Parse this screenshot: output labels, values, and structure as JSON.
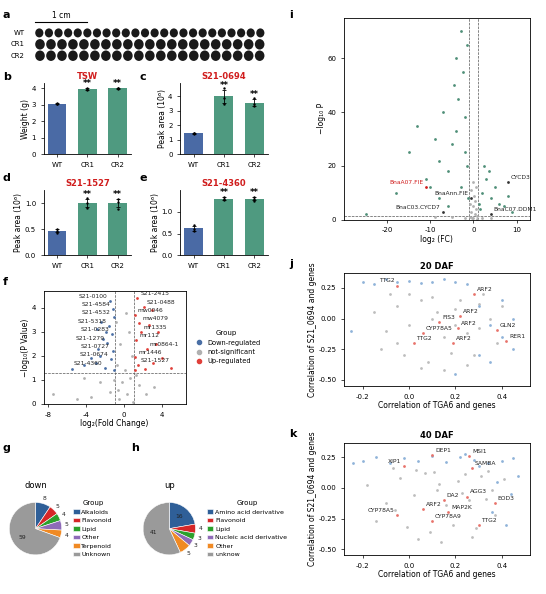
{
  "chart_data": [
    {
      "panel": "a",
      "type": "image",
      "rows": [
        "WT",
        "CR1",
        "CR2"
      ],
      "scale_bar": "1 cm"
    },
    {
      "panel": "b",
      "type": "bar",
      "title": "TSW",
      "ylabel": "Weight (g)",
      "categories": [
        "WT",
        "CR1",
        "CR2"
      ],
      "values": [
        3.05,
        3.95,
        4.0
      ],
      "errors": [
        0.03,
        0.05,
        0.03
      ],
      "points": [
        [
          3.02,
          3.05,
          3.08
        ],
        [
          3.88,
          3.95,
          4.0
        ],
        [
          3.95,
          4.0,
          4.02
        ]
      ],
      "annotations": [
        null,
        "**",
        "**"
      ],
      "colors": [
        "#4a6aa5",
        "#4f9a80",
        "#4f9a80"
      ],
      "ylim": [
        0,
        4.3
      ],
      "yticks": [
        0,
        1,
        2,
        3,
        4
      ],
      "grid": false
    },
    {
      "panel": "c",
      "type": "bar",
      "title": "S21-0694",
      "ylabel": "Peak area (10⁶)",
      "categories": [
        "WT",
        "CR1",
        "CR2"
      ],
      "values": [
        1.45,
        4.0,
        3.55
      ],
      "errors": [
        0.05,
        0.45,
        0.25
      ],
      "points": [
        [
          1.4,
          1.45,
          1.5
        ],
        [
          3.5,
          3.9,
          4.6
        ],
        [
          3.3,
          3.5,
          3.9
        ]
      ],
      "annotations": [
        null,
        "**",
        "**"
      ],
      "colors": [
        "#4a6aa5",
        "#4f9a80",
        "#4f9a80"
      ],
      "ylim": [
        0,
        4.9
      ],
      "yticks": [
        0,
        1,
        2,
        3,
        4
      ],
      "grid": false
    },
    {
      "panel": "d",
      "type": "bar",
      "title": "S21-1527",
      "ylabel": "Peak area (10⁶)",
      "categories": [
        "WT",
        "CR1",
        "CR2"
      ],
      "values": [
        0.47,
        1.0,
        1.0
      ],
      "errors": [
        0.03,
        0.08,
        0.08
      ],
      "points": [
        [
          0.43,
          0.47,
          0.5
        ],
        [
          0.9,
          1.0,
          1.1
        ],
        [
          0.88,
          1.02,
          1.08
        ]
      ],
      "annotations": [
        null,
        "**",
        "**"
      ],
      "colors": [
        "#4a6aa5",
        "#4f9a80",
        "#4f9a80"
      ],
      "ylim": [
        0,
        1.25
      ],
      "yticks": [
        {
          "value": 0,
          "label": "0.0"
        },
        0.5,
        {
          "value": 1,
          "label": "1.0"
        }
      ],
      "grid": false
    },
    {
      "panel": "e",
      "type": "bar",
      "title": "S21-4360",
      "ylabel": "Peak area (10⁶)",
      "categories": [
        "WT",
        "CR1",
        "CR2"
      ],
      "values": [
        0.62,
        1.3,
        1.3
      ],
      "errors": [
        0.06,
        0.03,
        0.03
      ],
      "points": [
        [
          0.55,
          0.6,
          0.7
        ],
        [
          1.27,
          1.3,
          1.33
        ],
        [
          1.26,
          1.3,
          1.34
        ]
      ],
      "annotations": [
        null,
        "**",
        "**"
      ],
      "colors": [
        "#4a6aa5",
        "#4f9a80",
        "#4f9a80"
      ],
      "ylim": [
        0,
        1.5
      ],
      "yticks": [
        {
          "value": 0,
          "label": "0.0"
        },
        0.5,
        {
          "value": 1,
          "label": "1.0"
        }
      ],
      "grid": false
    },
    {
      "panel": "f",
      "type": "scatter",
      "xlabel": "log₂(Fold Change)",
      "ylabel": "−log₁₀(P Value)",
      "legend": "right",
      "legend_title": "Group",
      "series": [
        {
          "name": "Down-regulated",
          "color": "#4a6fa5",
          "x": [
            -1.5,
            -1.2,
            -1.1,
            -1.6,
            -1.3,
            -1.8,
            -1.2,
            -1.4,
            -2.0,
            -2.5,
            -3.0,
            -2.8,
            -3.5,
            -2.4,
            -2.2,
            -1.9,
            -1.05,
            -4.2,
            -2.9,
            -5.5
          ],
          "y": [
            4.3,
            3.95,
            3.6,
            3.25,
            2.9,
            2.55,
            2.2,
            1.85,
            1.5,
            2.0,
            1.7,
            2.3,
            1.9,
            3.4,
            2.7,
            3.0,
            1.4,
            1.6,
            3.1,
            1.45
          ],
          "labels": [
            "S21-0100",
            "S21-4584",
            "S21-4532",
            "S21-5318",
            "S21-0283",
            "S21-1279",
            "S21-0727",
            "S21-0674",
            "S21-4360",
            null,
            null,
            null,
            null,
            null,
            null,
            null,
            null,
            null,
            null,
            null
          ]
        },
        {
          "name": "not-significant",
          "color": "#b0b0b0",
          "x": [
            -0.5,
            0.3,
            -0.2,
            0.6,
            -0.8,
            0.8,
            -0.4,
            0.5,
            -0.6,
            0.1,
            -1.5,
            1.6,
            -2.5,
            2.3,
            -3.5,
            3.2,
            -5.0,
            -7.5,
            0.9,
            -0.9,
            0.2,
            -1.1,
            1.3,
            -4.2
          ],
          "y": [
            0.2,
            0.4,
            0.9,
            1.1,
            1.6,
            2.0,
            2.5,
            3.0,
            0.6,
            1.4,
            0.5,
            0.8,
            0.9,
            0.4,
            0.3,
            0.7,
            0.2,
            0.4,
            0.1,
            3.4,
            3.8,
            1.0,
            1.2,
            1.1
          ]
        },
        {
          "name": "Up-regulated",
          "color": "#e0403a",
          "x": [
            1.4,
            2.1,
            1.1,
            1.6,
            1.8,
            1.3,
            2.4,
            1.2,
            1.5,
            3.0,
            2.6,
            3.4,
            4.0,
            2.9,
            5.0,
            3.6,
            1.1,
            2.2
          ],
          "y": [
            4.4,
            4.05,
            3.7,
            3.35,
            3.0,
            2.65,
            2.3,
            1.95,
            1.6,
            1.7,
            3.3,
            2.5,
            1.9,
            3.9,
            1.5,
            3.0,
            1.4,
            1.45
          ],
          "labels": [
            "S21-2415",
            "S21-0488",
            "mw0046",
            "mw4079",
            "mr1335",
            "mr112",
            "mr0864-1",
            "mr1446",
            "S21-1527",
            null,
            null,
            null,
            null,
            null,
            null,
            null,
            null,
            null
          ]
        }
      ],
      "reference_lines": {
        "x": [
          -1,
          1
        ],
        "y": [
          1.3
        ]
      },
      "xlim": [
        -8.5,
        6.5
      ],
      "xticks": [
        -8,
        -4,
        0,
        4
      ],
      "ylim": [
        0,
        4.7
      ],
      "yticks": [
        0,
        1,
        2,
        3,
        4
      ],
      "grid": false
    },
    {
      "panel": "g",
      "type": "pie",
      "title": "down",
      "legend": "right",
      "legend_title": "Group",
      "categories": [
        "Alkaloids",
        "Flavonoid",
        "Lipid",
        "Other",
        "Terpenoid",
        "Unknown"
      ],
      "values": [
        8,
        5,
        4,
        5,
        4,
        59
      ],
      "data_labels": true,
      "colors": [
        "#2f5f98",
        "#d62728",
        "#2ca02c",
        "#8e6bb8",
        "#f08a24",
        "#9a9a9a"
      ]
    },
    {
      "panel": "h",
      "type": "pie",
      "title": "up",
      "legend": "right",
      "legend_title": "Group",
      "categories": [
        "Amino acid derivative",
        "Flavonoid",
        "Lipid",
        "Nucleic acid derivative",
        "Other",
        "unknow"
      ],
      "values": [
        16,
        4,
        3,
        3,
        5,
        41
      ],
      "data_labels": true,
      "colors": [
        "#2f5f98",
        "#d62728",
        "#2ca02c",
        "#8e6bb8",
        "#f08a24",
        "#9a9a9a"
      ]
    },
    {
      "panel": "i",
      "type": "scatter",
      "xlabel": "log₂ (FC)",
      "ylabel": "−log₁₀ P",
      "series": [
        {
          "color": "#4f8f78",
          "x": [
            -25,
            -18,
            -15,
            -13,
            -11,
            -9,
            -8,
            -7,
            -6,
            -5,
            -4.5,
            -4,
            -3.5,
            -3,
            -2.5,
            -2,
            -1.5,
            -1.2,
            -6,
            -3,
            -2,
            -1.5,
            -4,
            -8,
            -10,
            1.5,
            2,
            3,
            4,
            5,
            6,
            7,
            8,
            9,
            2.5,
            1.2,
            3.5
          ],
          "y": [
            2,
            10,
            25,
            35,
            15,
            30,
            22,
            40,
            18,
            28,
            50,
            60,
            45,
            70,
            55,
            38,
            20,
            8,
            5,
            12,
            25,
            65,
            33,
            8,
            12,
            4,
            10,
            15,
            8,
            12,
            6,
            5,
            9,
            3,
            20,
            6,
            18
          ]
        },
        {
          "color": "#b0b0b0",
          "x": [
            -0.8,
            -0.5,
            -0.2,
            0,
            0.3,
            0.6,
            0.9,
            -0.7,
            0.4,
            -0.3,
            0.1,
            0.8,
            -2,
            2,
            -5,
            4,
            -9,
            -0.6,
            0.5,
            0
          ],
          "y": [
            1,
            3,
            5,
            0.5,
            2,
            4,
            1.5,
            6,
            7,
            0.8,
            9,
            0.3,
            0.5,
            0.8,
            1,
            0.6,
            1.1,
            11,
            12,
            14
          ]
        },
        {
          "color": "#d01c1c",
          "x": [
            -11
          ],
          "y": [
            12
          ],
          "labels": [
            "BnaA07.FIE"
          ]
        },
        {
          "color": "#333333",
          "x": [
            -7,
            -0.5,
            4,
            8
          ],
          "y": [
            3,
            8,
            2,
            14
          ],
          "labels": [
            "BnaC03.CYCD7",
            "BnaAnn.FIE",
            "BnaC07.DDM1",
            "CYCD3"
          ]
        }
      ],
      "reference_lines": {
        "x": [
          -1,
          1
        ],
        "y": [
          1.3
        ]
      },
      "xlim": [
        -30,
        13
      ],
      "xticks": [
        -20,
        -10,
        0,
        10
      ],
      "ylim": [
        0,
        75
      ],
      "yticks": [
        0,
        20,
        40,
        60
      ],
      "grid": false
    },
    {
      "panel": "j",
      "type": "scatter",
      "title": "20 DAF",
      "xlabel": "Correlation of TGA6 and genes",
      "ylabel": "Correlation of S21_0694 and genes",
      "series": [
        {
          "color": "#bdbdbd",
          "x": [
            -0.15,
            -0.1,
            -0.05,
            0,
            0.05,
            0.1,
            0.15,
            0.2,
            0.25,
            0.3,
            0.35,
            -0.12,
            -0.02,
            0.08,
            0.18,
            0.28,
            0.38,
            0.0,
            0.1,
            0.2,
            0.3,
            -0.08,
            0.12,
            0.22,
            0.32,
            0.05,
            0.15,
            0.25,
            -0.05,
            0.4
          ],
          "y": [
            0.05,
            -0.1,
            0.1,
            -0.05,
            0.15,
            0.0,
            -0.15,
            0.08,
            -0.12,
            0.12,
            0.0,
            -0.25,
            -0.3,
            -0.35,
            -0.28,
            -0.3,
            -0.2,
            0.2,
            0.18,
            -0.05,
            -0.08,
            0.2,
            0.05,
            0.15,
            0.2,
            -0.4,
            -0.42,
            -0.38,
            -0.2,
            0.1
          ]
        },
        {
          "color": "#8fb3d9",
          "x": [
            -0.2,
            -0.15,
            -0.1,
            -0.05,
            0.0,
            0.05,
            0.1,
            0.15,
            0.2,
            0.25,
            0.3,
            0.35,
            0.4,
            0.45,
            0.3,
            0.35,
            0.4,
            0.45,
            -0.25,
            0.2
          ],
          "y": [
            0.3,
            0.28,
            0.32,
            0.3,
            0.31,
            0.29,
            0.3,
            0.32,
            0.3,
            0.28,
            0.1,
            -0.05,
            -0.15,
            0.0,
            -0.3,
            -0.35,
            0.15,
            -0.25,
            -0.1,
            -0.45
          ]
        },
        {
          "color": "#e8736b",
          "x": [
            -0.05,
            0.28,
            0.22,
            0.13,
            0.21,
            0.38,
            0.06,
            0.02,
            0.19,
            0.42
          ],
          "y": [
            0.27,
            0.2,
            0.02,
            -0.03,
            -0.08,
            -0.09,
            -0.12,
            -0.2,
            -0.2,
            -0.18
          ],
          "labels": [
            "TTG2",
            "ARF2",
            "ARF2",
            "FIS3",
            "ARF2",
            "GLN2",
            "CYP78A5",
            "TTG2",
            "ARF2",
            "RER1"
          ]
        }
      ],
      "xlim": [
        -0.28,
        0.52
      ],
      "xticks": [
        {
          "value": -0.2,
          "label": "-0.2"
        },
        {
          "value": 0,
          "label": "0.0"
        },
        0.2,
        0.4
      ],
      "ylim": [
        -0.55,
        0.37
      ],
      "yticks": [
        {
          "value": -0.5,
          "label": "-0.50"
        },
        {
          "value": -0.25,
          "label": "-0.25"
        },
        {
          "value": 0,
          "label": "0.00"
        },
        0.25
      ],
      "grid": false
    },
    {
      "panel": "k",
      "type": "scatter",
      "title": "40 DAF",
      "xlabel": "Correlation of TGA6 and genes",
      "ylabel": "Correlation of S21_0694 and genes",
      "series": [
        {
          "color": "#bdbdbd",
          "x": [
            -0.18,
            -0.1,
            -0.04,
            0.02,
            0.07,
            0.12,
            0.16,
            0.21,
            0.26,
            0.31,
            0.36,
            -0.14,
            -0.01,
            0.09,
            0.19,
            0.29,
            0.37,
            0.03,
            0.11,
            0.23,
            0.33,
            -0.07,
            0.13,
            0.24,
            0.34,
            0.04,
            0.14,
            0.27,
            -0.06,
            0.41
          ],
          "y": [
            0.02,
            -0.12,
            0.08,
            -0.06,
            0.12,
            -0.02,
            -0.14,
            0.06,
            -0.1,
            0.1,
            -0.02,
            -0.27,
            -0.32,
            -0.36,
            -0.3,
            -0.33,
            -0.22,
            0.15,
            0.13,
            -0.04,
            -0.09,
            0.16,
            0.03,
            0.11,
            0.14,
            -0.42,
            -0.44,
            -0.4,
            -0.18,
            0.07
          ]
        },
        {
          "color": "#8fb3d9",
          "x": [
            -0.2,
            -0.14,
            -0.08,
            -0.02,
            0.04,
            0.1,
            0.16,
            0.22,
            0.28,
            0.34,
            0.4,
            0.45,
            0.38,
            0.44,
            0.36,
            0.42,
            0.47,
            0.3,
            -0.24,
            0.24
          ],
          "y": [
            0.22,
            0.25,
            0.2,
            0.24,
            0.22,
            0.26,
            0.21,
            0.25,
            0.23,
            0.2,
            0.22,
            0.24,
            0.05,
            -0.05,
            -0.2,
            -0.3,
            0.1,
            0.18,
            0.2,
            0.28
          ]
        },
        {
          "color": "#e8736b",
          "x": [
            0.1,
            0.26,
            -0.02,
            0.27,
            0.15,
            0.25,
            0.37,
            0.06,
            -0.05,
            0.17,
            0.1,
            0.3
          ],
          "y": [
            0.27,
            0.26,
            0.18,
            0.16,
            -0.1,
            -0.07,
            -0.12,
            -0.17,
            -0.22,
            -0.2,
            -0.27,
            -0.3
          ],
          "labels": [
            "DEP1",
            "MSI1",
            "XIP1",
            "SAMBA",
            "DA2",
            "AGG3",
            "EOD3",
            "ARF2",
            "CYP78A5",
            "MAP2K",
            "CYP78A9",
            "TTG2"
          ]
        }
      ],
      "xlim": [
        -0.28,
        0.52
      ],
      "xticks": [
        {
          "value": -0.2,
          "label": "-0.2"
        },
        {
          "value": 0,
          "label": "0.0"
        },
        0.2,
        0.4
      ],
      "ylim": [
        -0.55,
        0.37
      ],
      "yticks": [
        {
          "value": -0.5,
          "label": "-0.50"
        },
        {
          "value": -0.25,
          "label": "-0.25"
        },
        {
          "value": 0,
          "label": "0.00"
        },
        0.25
      ],
      "grid": false
    }
  ]
}
